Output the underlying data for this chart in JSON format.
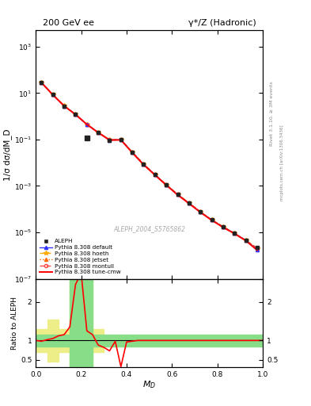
{
  "title_left": "200 GeV ee",
  "title_right": "γ*/Z (Hadronic)",
  "ylabel_main": "1/σ dσ/dM_D",
  "ylabel_ratio": "Ratio to ALEPH",
  "xlabel": "M_D",
  "watermark": "ALEPH_2004_S5765862",
  "right_label_top": "Rivet 3.1.10, ≥ 3M events",
  "right_label_bot": "mcplots.cern.ch [arXiv:1306.3436]",
  "aleph_x": [
    0.025,
    0.075,
    0.125,
    0.175,
    0.275,
    0.325,
    0.375,
    0.425,
    0.475,
    0.525,
    0.575,
    0.625,
    0.675,
    0.725,
    0.775,
    0.825,
    0.875,
    0.925,
    0.975
  ],
  "aleph_y": [
    28.0,
    8.5,
    2.8,
    1.2,
    0.2,
    0.095,
    0.1,
    0.028,
    0.0085,
    0.003,
    0.0011,
    0.00042,
    0.00018,
    7.5e-05,
    3.4e-05,
    1.7e-05,
    9e-06,
    4.5e-06,
    2.3e-06
  ],
  "aleph_yerr": [
    2.5,
    0.8,
    0.22,
    0.1,
    0.018,
    0.009,
    0.01,
    0.003,
    0.0009,
    0.0003,
    0.00011,
    4e-05,
    1.9e-05,
    8e-06,
    3.5e-06,
    1.8e-06,
    9e-07,
    4.5e-07,
    2.3e-07
  ],
  "aleph_outlier_x": [
    0.225
  ],
  "aleph_outlier_y": [
    0.115
  ],
  "pythia_x": [
    0.025,
    0.075,
    0.125,
    0.175,
    0.225,
    0.275,
    0.325,
    0.375,
    0.425,
    0.475,
    0.525,
    0.575,
    0.625,
    0.675,
    0.725,
    0.775,
    0.825,
    0.875,
    0.925,
    0.975
  ],
  "default_y": [
    28.0,
    8.5,
    2.8,
    1.2,
    0.45,
    0.2,
    0.095,
    0.097,
    0.028,
    0.0085,
    0.003,
    0.0011,
    0.00042,
    0.00018,
    7.5e-05,
    3.4e-05,
    1.7e-05,
    9e-06,
    4.5e-06,
    1.8e-06
  ],
  "hoeth_y": [
    28.5,
    8.6,
    2.9,
    1.22,
    0.46,
    0.205,
    0.098,
    0.1,
    0.029,
    0.0088,
    0.0031,
    0.00115,
    0.00044,
    0.00019,
    7.8e-05,
    3.5e-05,
    1.8e-05,
    9.2e-06,
    4.6e-06,
    2.1e-06
  ],
  "jetset_y": [
    28.2,
    8.55,
    2.82,
    1.21,
    0.455,
    0.202,
    0.096,
    0.098,
    0.0285,
    0.0086,
    0.00305,
    0.00112,
    0.00043,
    0.000185,
    7.7e-05,
    3.45e-05,
    1.72e-05,
    9.1e-06,
    4.55e-06,
    2e-06
  ],
  "montull_y": [
    28.3,
    8.52,
    2.81,
    1.205,
    0.452,
    0.201,
    0.0965,
    0.099,
    0.0282,
    0.00855,
    0.00302,
    0.00111,
    0.000425,
    0.000182,
    7.55e-05,
    3.42e-05,
    1.71e-05,
    9.05e-06,
    4.52e-06,
    2.05e-06
  ],
  "tunecmw_y": [
    28.1,
    8.48,
    2.79,
    1.195,
    0.448,
    0.198,
    0.094,
    0.096,
    0.027,
    0.0082,
    0.00295,
    0.00108,
    0.00041,
    0.000175,
    7.3e-05,
    3.32e-05,
    1.65e-05,
    8.8e-06,
    4.4e-06,
    1.7e-06
  ],
  "ylim_main": [
    1e-07,
    5000
  ],
  "ylim_ratio": [
    0.3,
    2.6
  ],
  "xlim": [
    0.0,
    1.0
  ],
  "ratio_yticks": [
    0.5,
    1.0,
    2.0
  ],
  "legend_entries": [
    "ALEPH",
    "Pythia 8.308 default",
    "Pythia 8.308 hoeth",
    "Pythia 8.308 jetset",
    "Pythia 8.308 montull",
    "Pythia 8.308 tune-cmw"
  ],
  "colors": {
    "aleph": "#222222",
    "default": "#3333ff",
    "hoeth": "#ffaa00",
    "jetset": "#ff6600",
    "montull": "#ff4444",
    "tunecmw": "#ff0000",
    "green_band": "#88dd88",
    "yellow_band": "#eeee88"
  },
  "ratio_red_x": [
    0.0,
    0.025,
    0.05,
    0.075,
    0.1,
    0.125,
    0.15,
    0.175,
    0.2,
    0.225,
    0.25,
    0.275,
    0.3,
    0.325,
    0.35,
    0.375,
    0.4,
    0.45,
    0.5,
    0.55,
    0.6,
    0.65,
    0.7,
    0.75,
    0.8,
    0.85,
    0.9,
    0.95,
    1.0
  ],
  "ratio_red_y": [
    1.0,
    0.98,
    1.02,
    1.05,
    1.12,
    1.15,
    1.35,
    2.45,
    2.75,
    1.25,
    1.15,
    0.88,
    0.82,
    0.73,
    0.98,
    0.32,
    0.96,
    1.0,
    1.0,
    1.0,
    1.0,
    1.0,
    1.0,
    1.0,
    1.0,
    1.0,
    1.0,
    1.0,
    1.0
  ],
  "green_bins": [
    [
      0.0,
      0.05
    ],
    [
      0.05,
      0.1
    ],
    [
      0.1,
      0.15
    ],
    [
      0.15,
      0.2
    ],
    [
      0.2,
      0.25
    ],
    [
      0.25,
      0.3
    ],
    [
      0.3,
      1.0
    ]
  ],
  "green_lo": [
    0.85,
    0.85,
    0.85,
    0.3,
    0.3,
    0.85,
    0.85
  ],
  "green_hi": [
    1.15,
    1.15,
    1.15,
    2.6,
    2.6,
    1.15,
    1.15
  ],
  "yellow_bins": [
    [
      0.0,
      0.05
    ],
    [
      0.05,
      0.1
    ],
    [
      0.1,
      0.15
    ],
    [
      0.15,
      0.2
    ],
    [
      0.2,
      0.25
    ],
    [
      0.25,
      0.3
    ]
  ],
  "yellow_lo": [
    0.7,
    0.45,
    0.7,
    0.3,
    0.3,
    0.7
  ],
  "yellow_hi": [
    1.3,
    1.55,
    1.3,
    2.6,
    2.6,
    1.3
  ]
}
